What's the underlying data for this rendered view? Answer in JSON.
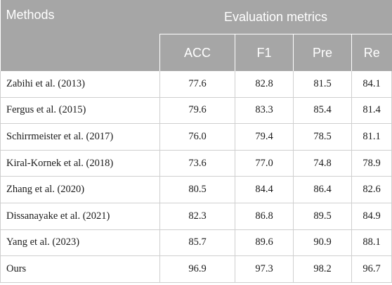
{
  "header": {
    "methods_label": "Methods",
    "group_label": "Evaluation metrics",
    "metrics": [
      "ACC",
      "F1",
      "Pre",
      "Re"
    ]
  },
  "rows": [
    {
      "method": "Zabihi et al. (2013)",
      "acc": "77.6",
      "f1": "82.8",
      "pre": "81.5",
      "re": "84.1"
    },
    {
      "method": "Fergus et al. (2015)",
      "acc": "79.6",
      "f1": "83.3",
      "pre": "85.4",
      "re": "81.4"
    },
    {
      "method": "Schirrmeister et al. (2017)",
      "acc": "76.0",
      "f1": "79.4",
      "pre": "78.5",
      "re": "81.1"
    },
    {
      "method": "Kiral-Kornek et al. (2018)",
      "acc": "73.6",
      "f1": "77.0",
      "pre": "74.8",
      "re": "78.9"
    },
    {
      "method": "Zhang et al. (2020)",
      "acc": "80.5",
      "f1": "84.4",
      "pre": "86.4",
      "re": "82.6"
    },
    {
      "method": "Dissanayake et al. (2021)",
      "acc": "82.3",
      "f1": "86.8",
      "pre": "89.5",
      "re": "84.9"
    },
    {
      "method": "Yang et al. (2023)",
      "acc": "85.7",
      "f1": "89.6",
      "pre": "90.9",
      "re": "88.1"
    },
    {
      "method": "Ours",
      "acc": "96.9",
      "f1": "97.3",
      "pre": "98.2",
      "re": "96.7"
    }
  ]
}
